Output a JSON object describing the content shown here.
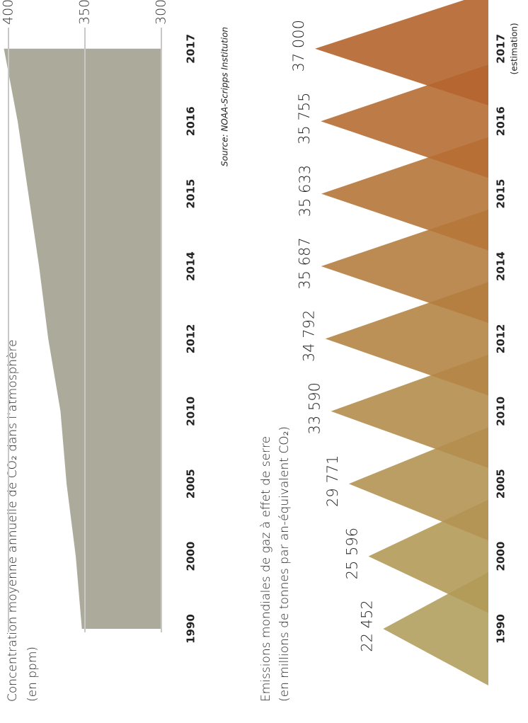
{
  "chart_data": [
    {
      "type": "area",
      "title": "Concentration moyenne annuelle de CO₂ dans l’atmosphère",
      "subtitle": "(en ppm)",
      "source": "Source: NOAA-Scripps Institution",
      "categories": [
        "1990",
        "2000",
        "2005",
        "2010",
        "2012",
        "2014",
        "2015",
        "2016",
        "2017"
      ],
      "values": [
        352,
        356,
        362,
        366,
        374,
        380,
        387,
        394,
        403
      ],
      "ylim": [
        300,
        400
      ],
      "yticks": [
        300,
        350,
        400
      ],
      "grid": true,
      "color": "#acaa9b"
    },
    {
      "type": "triangle",
      "title": "Emissions mondiales de gaz à effet de serre",
      "subtitle": "(en millions de tonnes par an-équivalent CO₂)",
      "categories": [
        "1990",
        "2000",
        "2005",
        "2010",
        "2012",
        "2014",
        "2015",
        "2016",
        "2017"
      ],
      "annotation": "(estimation)",
      "values": [
        22452,
        25596,
        29771,
        33590,
        34792,
        35687,
        35633,
        35755,
        37000
      ],
      "value_labels": [
        "22 452",
        "25 596",
        "29 771",
        "33 590",
        "34 792",
        "35 687",
        "35 633",
        "35 755",
        "37 000"
      ],
      "colors": [
        "#b3a05e",
        "#b39a58",
        "#b49453",
        "#b48d4c",
        "#b58546",
        "#b57d40",
        "#b6753a",
        "#b66d34",
        "#b5642e"
      ]
    }
  ]
}
